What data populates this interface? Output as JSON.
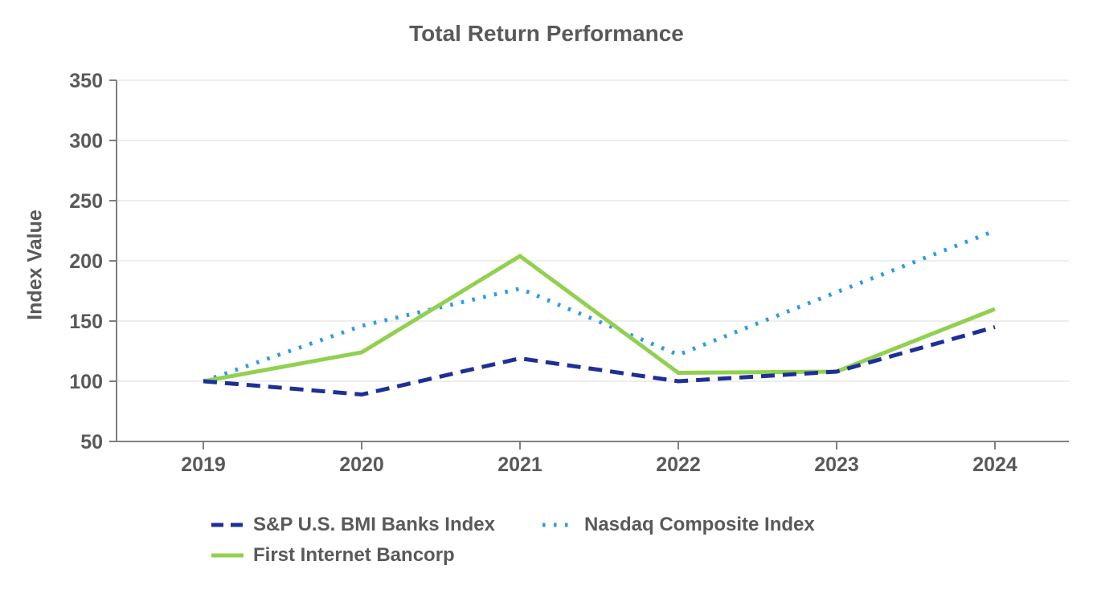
{
  "chart_data": {
    "type": "line",
    "title": "Total Return Performance",
    "xlabel": "",
    "ylabel": "Index Value",
    "x": [
      "2019",
      "2020",
      "2021",
      "2022",
      "2023",
      "2024"
    ],
    "y_ticks": [
      350,
      300,
      250,
      200,
      150,
      100,
      50
    ],
    "ylim": [
      50,
      350
    ],
    "grid": "horizontal",
    "legend_position": "bottom",
    "series": [
      {
        "name": "S&P U.S. BMI Banks Index",
        "style": "dashed",
        "color": "#1E2F97",
        "values": [
          100,
          89,
          119,
          100,
          108,
          145
        ]
      },
      {
        "name": "Nasdaq Composite Index",
        "style": "dotted",
        "color": "#2E9BE8",
        "values": [
          100,
          146,
          177,
          122,
          174,
          225
        ]
      },
      {
        "name": "First Internet Bancorp",
        "style": "solid",
        "color": "#92D050",
        "values": [
          100,
          124,
          204,
          107,
          108,
          160
        ]
      }
    ],
    "draw_order": [
      1,
      2,
      0
    ]
  },
  "colors": {
    "text": "#595959",
    "axis": "#7F7F7F",
    "grid": "#E7E7E7",
    "background": "#FFFFFF"
  }
}
